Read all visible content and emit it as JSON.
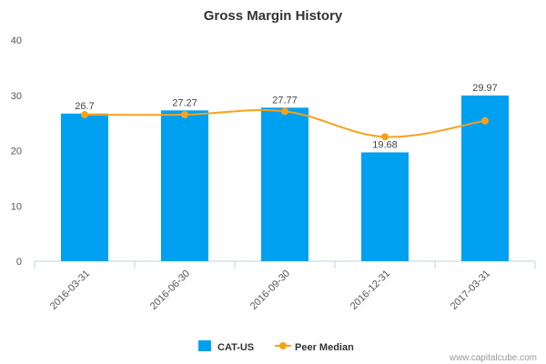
{
  "chart_data": {
    "type": "bar",
    "title": "Gross Margin History",
    "categories": [
      "2016-03-31",
      "2016-06-30",
      "2016-09-30",
      "2016-12-31",
      "2017-03-31"
    ],
    "series": [
      {
        "name": "CAT-US",
        "type": "bar",
        "values": [
          26.7,
          27.27,
          27.77,
          19.68,
          29.97
        ],
        "data_labels": [
          "26.7",
          "27.27",
          "27.77",
          "19.68",
          "29.97"
        ],
        "color": "#00a0f0"
      },
      {
        "name": "Peer Median",
        "type": "line",
        "values": [
          26.5,
          26.5,
          27.1,
          22.5,
          25.4
        ],
        "color": "#f7a21b"
      }
    ],
    "ylim": [
      0,
      40
    ],
    "yticks": [
      0,
      10,
      20,
      30,
      40
    ],
    "grid": false,
    "legend": "bottom-center"
  },
  "credit": "www.capitalcube.com"
}
